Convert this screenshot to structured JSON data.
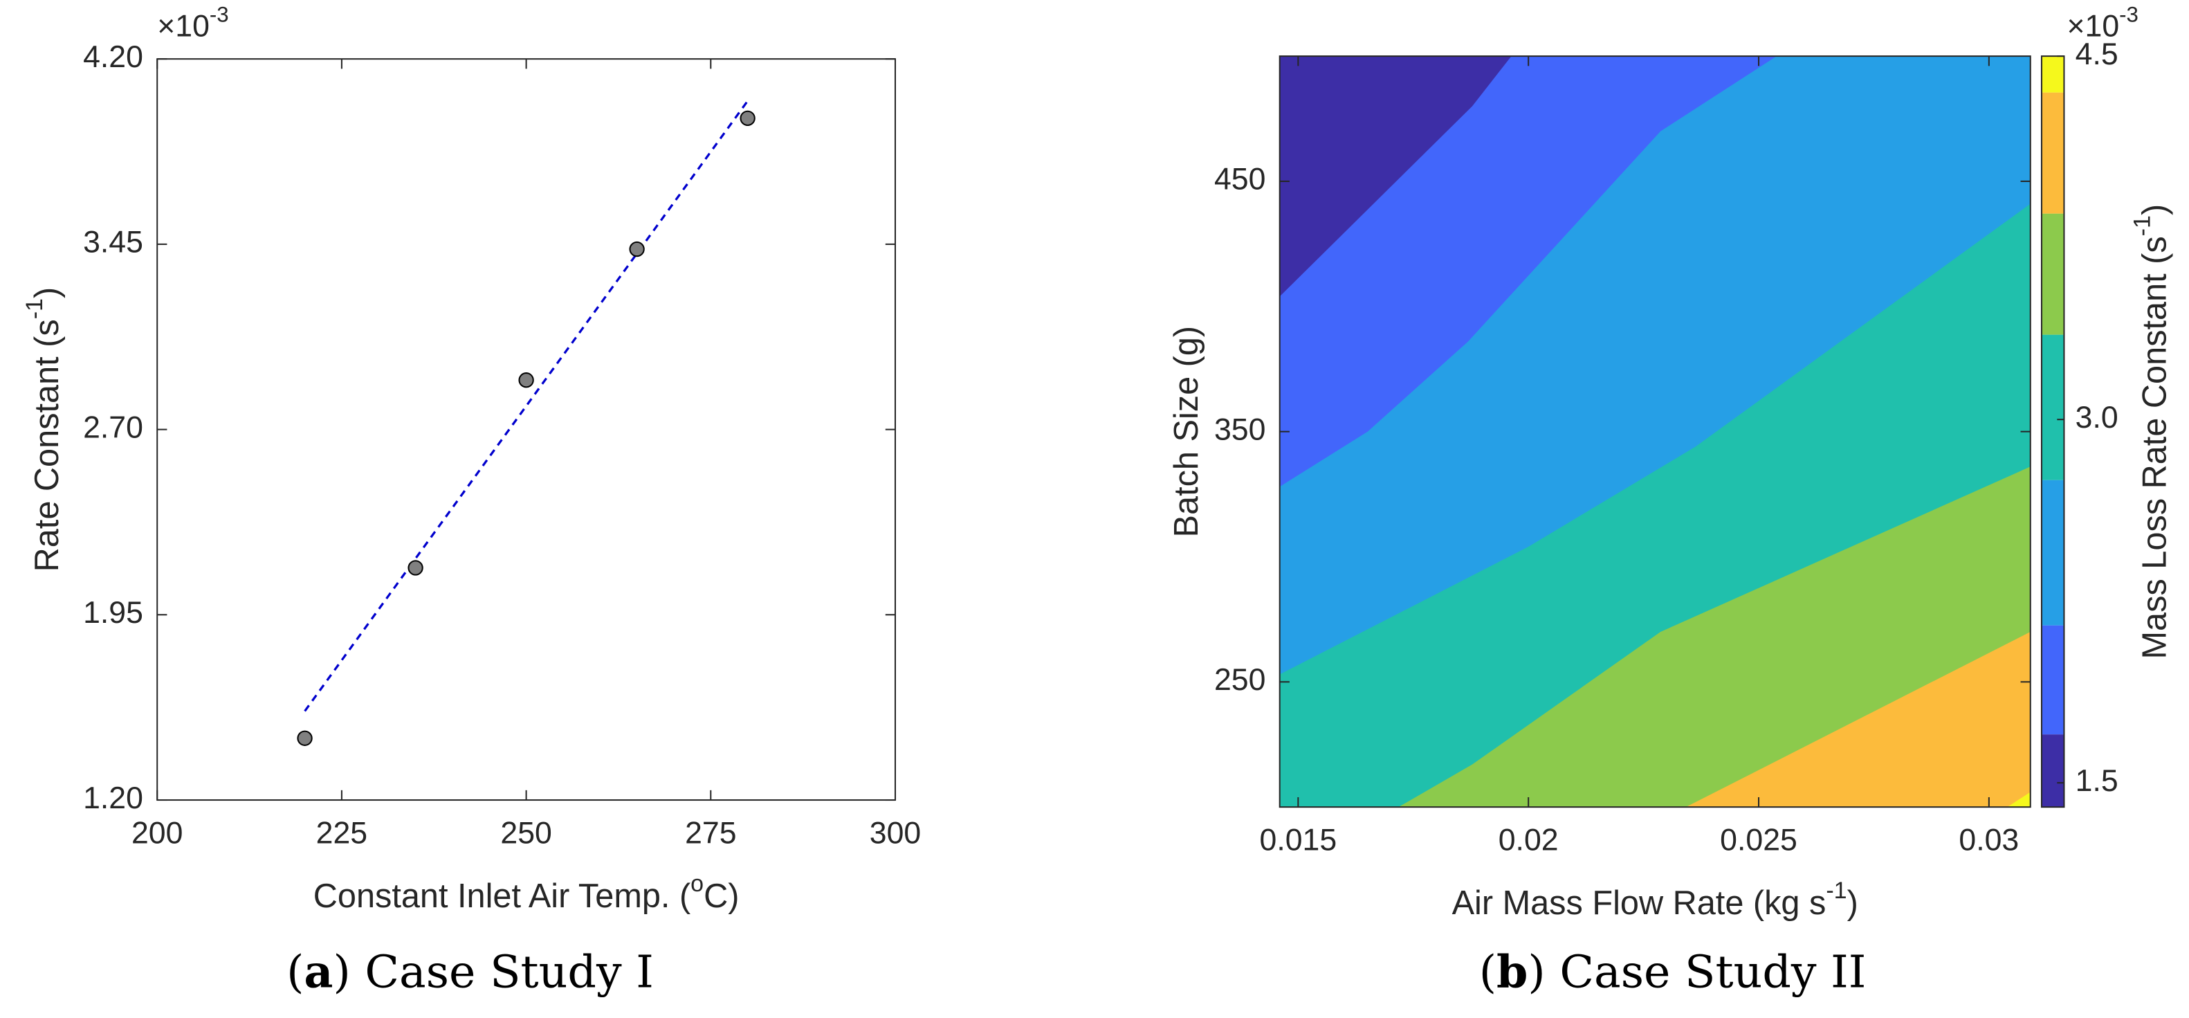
{
  "chart_data": [
    {
      "type": "scatter",
      "exponent": [
        {
          "text": "×10"
        },
        {
          "text": "-3",
          "sup": true
        }
      ],
      "x_label": [
        {
          "text": "Constant Inlet Air Temp. ("
        },
        {
          "text": "o",
          "sup": true
        },
        {
          "text": "C)"
        }
      ],
      "y_label": [
        {
          "text": "Rate Constant (s"
        },
        {
          "text": "-1",
          "sup": true
        },
        {
          "text": ")"
        }
      ],
      "caption": [
        {
          "text": "("
        },
        {
          "text": "a",
          "bold": true
        },
        {
          "text": ") Case Study I"
        }
      ],
      "x": [
        220,
        235,
        250,
        265,
        280
      ],
      "values": [
        1.45,
        2.14,
        2.9,
        3.43,
        3.96
      ],
      "color": "#808080",
      "fit": {
        "x": [
          220,
          280
        ],
        "values": [
          1.56,
          4.03
        ],
        "color": "#0000cd",
        "dashed": true
      },
      "xlim": [
        200,
        300
      ],
      "xticks": [
        200,
        225,
        250,
        275,
        300
      ],
      "ylim": [
        1.2,
        4.2
      ],
      "yticks": [
        {
          "value": 1.2,
          "label": "1.20"
        },
        {
          "value": 1.95,
          "label": "1.95"
        },
        {
          "value": 2.7,
          "label": "2.70"
        },
        {
          "value": 3.45,
          "label": "3.45"
        },
        {
          "value": 4.2,
          "label": "4.20"
        }
      ]
    },
    {
      "type": "contour",
      "exponent": [
        {
          "text": "×10"
        },
        {
          "text": "-3",
          "sup": true
        }
      ],
      "x_label": [
        {
          "text": "Air Mass Flow Rate (kg s"
        },
        {
          "text": "-1",
          "sup": true
        },
        {
          "text": ")"
        }
      ],
      "y_label": [
        {
          "text": "Batch Size (g)"
        }
      ],
      "colorbar_label": [
        {
          "text": "Mass Loss Rate Constant (s"
        },
        {
          "text": "-1",
          "sup": true
        },
        {
          "text": ")"
        }
      ],
      "caption": [
        {
          "text": "("
        },
        {
          "text": "b",
          "bold": true
        },
        {
          "text": ") Case Study II"
        }
      ],
      "color": "#3d2ea6",
      "contours": [
        {
          "level": 1.7,
          "color": "#4266fb",
          "x": [
            0.0146,
            0.01878,
            0.01963
          ],
          "y": [
            404,
            480,
            500
          ]
        },
        {
          "level": 2.15,
          "color": "#269fe6",
          "x": [
            0.0146,
            0.01651,
            0.01869,
            0.02287,
            0.02539
          ],
          "y": [
            328,
            350,
            386,
            470,
            500
          ]
        },
        {
          "level": 2.75,
          "color": "#20c0ac",
          "x": [
            0.0146,
            0.02,
            0.02363,
            0.0309
          ],
          "y": [
            253,
            304,
            344,
            441
          ]
        },
        {
          "level": 3.35,
          "color": "#8cca4c",
          "x": [
            0.01718,
            0.01878,
            0.02287,
            0.0309
          ],
          "y": [
            200,
            217,
            270,
            336
          ]
        },
        {
          "level": 3.85,
          "color": "#fcbb3c",
          "x": [
            0.02342,
            0.0309
          ],
          "y": [
            200,
            270
          ]
        },
        {
          "level": 4.35,
          "color": "#f5f81c",
          "x": [
            0.0304,
            0.0309
          ],
          "y": [
            200,
            206
          ]
        }
      ],
      "xlim": [
        0.0146,
        0.0309
      ],
      "xticks": [
        0.015,
        0.02,
        0.025,
        0.03
      ],
      "ylim": [
        200,
        500
      ],
      "yticks": [
        250,
        350,
        450
      ],
      "clim": [
        1.4,
        4.5
      ],
      "cticks": [
        1.5,
        {
          "value": 3,
          "label": "3.0"
        },
        4.5
      ]
    }
  ]
}
